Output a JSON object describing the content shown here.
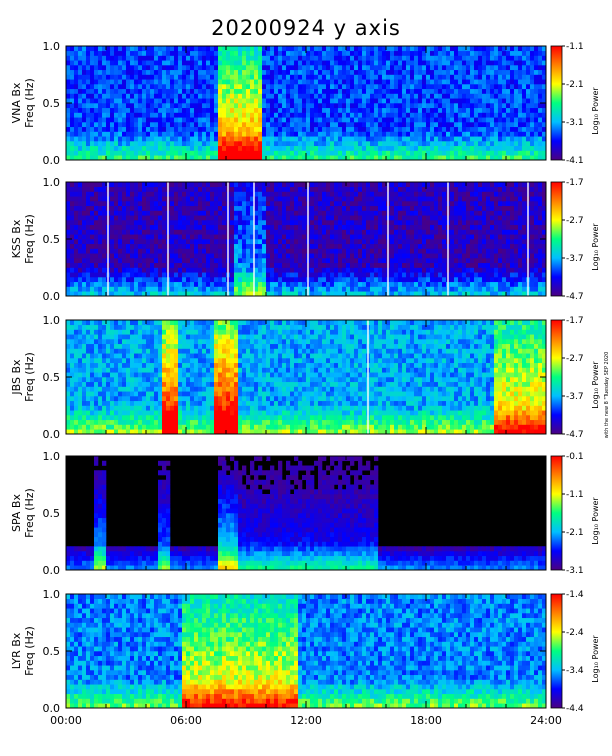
{
  "title": "20200924  y  axis",
  "side_note": "with the new 8 \"Tuesday SEP 2020",
  "chart_data": {
    "type": "heatmap",
    "title": "20200924  y  axis",
    "xlabel": "",
    "x_ticks": [
      "00:00",
      "06:00",
      "12:00",
      "18:00",
      "24:00"
    ],
    "xlim_hours": [
      0,
      24
    ],
    "grid": false,
    "colormap": [
      "#4b0082",
      "#0000ff",
      "#00bfff",
      "#00ff80",
      "#ffff00",
      "#ff8000",
      "#ff0000"
    ],
    "panels": [
      {
        "station": "VNA",
        "ylabel_1": "VNA  Bx",
        "ylabel_2": "Freq  (Hz)",
        "y_ticks": [
          "0.0",
          "0.5",
          "1.0"
        ],
        "ylim": [
          0,
          1.0
        ],
        "colorbar_label": "Log₁₀ Power",
        "colorbar_ticks": [
          "-1.1",
          "-2.1",
          "-3.1",
          "-4.1"
        ],
        "colorbar_range": [
          -4.1,
          -1.1
        ],
        "background_level": 0.22,
        "events": [
          {
            "start_hour": 7.7,
            "end_hour": 9.7,
            "intensity": 0.65
          }
        ],
        "data_gaps_hours": []
      },
      {
        "station": "KSS",
        "ylabel_1": "KSS  Bx",
        "ylabel_2": "Freq  (Hz)",
        "y_ticks": [
          "0.0",
          "0.5",
          "1.0"
        ],
        "ylim": [
          0,
          1.0
        ],
        "colorbar_label": "Log₁₀ Power",
        "colorbar_ticks": [
          "-1.7",
          "-2.7",
          "-3.7",
          "-4.7"
        ],
        "colorbar_range": [
          -4.7,
          -1.7
        ],
        "background_level": 0.08,
        "events": [
          {
            "start_hour": 8.5,
            "end_hour": 10.0,
            "intensity": 0.25
          }
        ],
        "data_gaps_hours": [
          2.1,
          5.1,
          8.1,
          9.4,
          12.1,
          16.1,
          19.1,
          23.1
        ]
      },
      {
        "station": "JBS",
        "ylabel_1": "JBS  Bx",
        "ylabel_2": "Freq  (Hz)",
        "y_ticks": [
          "0.0",
          "0.5",
          "1.0"
        ],
        "ylim": [
          0,
          1.0
        ],
        "colorbar_label": "Log₁₀ Power",
        "colorbar_ticks": [
          "-1.7",
          "-2.7",
          "-3.7",
          "-4.7"
        ],
        "colorbar_range": [
          -4.7,
          -1.7
        ],
        "background_level": 0.32,
        "events": [
          {
            "start_hour": 4.9,
            "end_hour": 5.6,
            "intensity": 0.7
          },
          {
            "start_hour": 7.5,
            "end_hour": 8.6,
            "intensity": 0.75
          },
          {
            "start_hour": 21.5,
            "end_hour": 24.0,
            "intensity": 0.45
          }
        ],
        "data_gaps_hours": [
          15.1
        ]
      },
      {
        "station": "SPA",
        "ylabel_1": "SPA  Bx",
        "ylabel_2": "Freq  (Hz)",
        "y_ticks": [
          "0.0",
          "0.5",
          "1.0"
        ],
        "ylim": [
          0,
          1.0
        ],
        "colorbar_label": "Log₁₀ Power",
        "colorbar_ticks": [
          "-0.1",
          "-1.1",
          "-2.1",
          "-3.1"
        ],
        "colorbar_range": [
          -3.1,
          -0.1
        ],
        "background_level": 0.0,
        "events": [
          {
            "start_hour": 1.5,
            "end_hour": 1.9,
            "intensity": 0.35
          },
          {
            "start_hour": 4.7,
            "end_hour": 5.1,
            "intensity": 0.3
          },
          {
            "start_hour": 7.7,
            "end_hour": 8.5,
            "intensity": 0.45
          },
          {
            "start_hour": 8.5,
            "end_hour": 15.5,
            "intensity": 0.2
          }
        ],
        "data_gaps_hours": []
      },
      {
        "station": "LYR",
        "ylabel_1": "LYR  Bx",
        "ylabel_2": "Freq  (Hz)",
        "y_ticks": [
          "0.0",
          "0.5",
          "1.0"
        ],
        "ylim": [
          0,
          1.0
        ],
        "colorbar_label": "Log₁₀ Power",
        "colorbar_ticks": [
          "-1.4",
          "-2.4",
          "-3.4",
          "-4.4"
        ],
        "colorbar_range": [
          -4.4,
          -1.4
        ],
        "background_level": 0.28,
        "events": [
          {
            "start_hour": 5.8,
            "end_hour": 11.5,
            "intensity": 0.45
          }
        ],
        "data_gaps_hours": []
      }
    ]
  }
}
